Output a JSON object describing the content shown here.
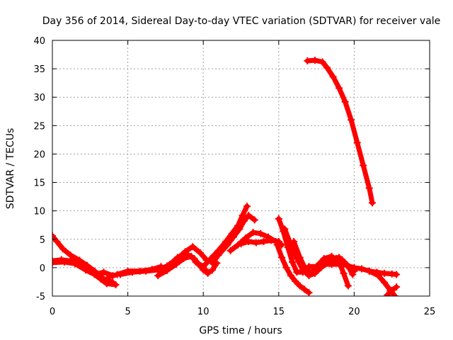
{
  "chart_data": {
    "type": "scatter",
    "title": "Day 356 of 2014, Sidereal Day-to-day VTEC variation (SDTVAR) for receiver vale",
    "xlabel": "GPS time / hours",
    "ylabel": "SDTVAR / TECUs",
    "xlim": [
      0,
      25
    ],
    "ylim": [
      -5,
      40
    ],
    "xticks": [
      "0",
      "5",
      "10",
      "15",
      "20",
      "25"
    ],
    "yticks": [
      "-5",
      "0",
      "5",
      "10",
      "15",
      "20",
      "25",
      "30",
      "35",
      "40"
    ],
    "grid": true,
    "marker": "plus",
    "color": "#ff0000",
    "series": [
      {
        "name": "s1",
        "x": [
          0,
          0.3,
          0.7,
          1.2,
          1.8,
          2.3,
          2.8,
          3.3,
          4.0
        ],
        "y": [
          5.6,
          4.6,
          3.3,
          2.2,
          1.3,
          0.4,
          -0.6,
          -1.8,
          -2.6
        ]
      },
      {
        "name": "s2",
        "x": [
          0,
          0.6,
          1.2,
          1.8,
          2.3,
          2.8,
          3.2,
          3.6,
          4.2
        ],
        "y": [
          1.2,
          1.4,
          1.2,
          0.8,
          0.0,
          -1.2,
          -2.0,
          -2.8,
          -3.0
        ]
      },
      {
        "name": "s3",
        "x": [
          0,
          0.8,
          1.5,
          2.2,
          2.8,
          3.4,
          4.0
        ],
        "y": [
          0.9,
          1.0,
          0.7,
          -0.4,
          -1.2,
          -0.8,
          -1.4
        ]
      },
      {
        "name": "s4",
        "x": [
          3.8,
          4.3,
          5.0,
          5.8,
          6.6,
          7.2
        ],
        "y": [
          -1.6,
          -1.2,
          -0.6,
          -0.6,
          -0.3,
          0.2
        ]
      },
      {
        "name": "s5",
        "x": [
          4.5,
          5.3,
          6.2,
          7.0,
          7.6,
          8.2,
          8.8,
          9.3,
          9.8,
          10.2
        ],
        "y": [
          -1.2,
          -0.8,
          -0.6,
          -0.4,
          0.3,
          1.4,
          2.8,
          3.7,
          2.6,
          1.4
        ]
      },
      {
        "name": "s6",
        "x": [
          7.3,
          7.8,
          8.3,
          8.9,
          9.4,
          9.7,
          10.0,
          10.3,
          10.6,
          10.9
        ],
        "y": [
          -0.6,
          0.6,
          1.8,
          2.4,
          1.6,
          0.6,
          -0.4,
          -1.0,
          -0.4,
          0.8
        ]
      },
      {
        "name": "s7",
        "x": [
          7.0,
          7.6,
          8.2,
          8.7,
          9.2,
          9.6,
          10.0,
          10.3
        ],
        "y": [
          -1.4,
          -0.5,
          0.6,
          1.6,
          2.0,
          0.8,
          0.0,
          -0.8
        ]
      },
      {
        "name": "s8",
        "x": [
          9.5,
          10.0,
          10.5,
          11.0,
          11.5,
          11.9,
          12.3,
          12.6,
          12.9
        ],
        "y": [
          1.0,
          0.2,
          1.6,
          3.0,
          4.6,
          6.0,
          7.4,
          9.2,
          10.8
        ]
      },
      {
        "name": "s9",
        "x": [
          10.6,
          11.0,
          11.6,
          12.0,
          12.4,
          12.7,
          13.0,
          13.4
        ],
        "y": [
          0.8,
          2.2,
          4.0,
          5.4,
          6.8,
          8.2,
          9.2,
          8.4
        ]
      },
      {
        "name": "s10",
        "x": [
          11.8,
          12.3,
          12.8,
          13.3,
          13.8,
          14.3,
          14.8,
          15.2
        ],
        "y": [
          3.0,
          4.0,
          5.2,
          6.2,
          6.0,
          5.4,
          4.6,
          4.0
        ]
      },
      {
        "name": "s11",
        "x": [
          12.5,
          13.0,
          13.5,
          14.0,
          14.5,
          15.0
        ],
        "y": [
          4.2,
          4.6,
          4.4,
          4.6,
          4.8,
          4.6
        ]
      },
      {
        "name": "s12",
        "x": [
          15.0,
          15.3,
          15.6,
          15.9,
          16.2,
          16.6,
          17.0,
          17.5,
          18.0,
          18.5,
          19.0,
          19.5,
          20.0,
          20.5,
          21.0,
          21.5,
          22.0,
          22.5,
          22.8
        ],
        "y": [
          8.6,
          6.4,
          3.6,
          1.0,
          -0.8,
          -0.8,
          0.2,
          0.2,
          0.6,
          0.6,
          0.6,
          0.4,
          0.0,
          -0.2,
          -0.6,
          -0.8,
          -1.0,
          -1.1,
          -1.2
        ]
      },
      {
        "name": "s13",
        "x": [
          15.4,
          15.8,
          16.2,
          16.6,
          17.0,
          17.4,
          17.8,
          18.3,
          18.8,
          19.2,
          19.6,
          19.9
        ],
        "y": [
          6.8,
          4.0,
          1.6,
          -0.4,
          -1.4,
          -1.0,
          0.0,
          1.0,
          1.6,
          1.4,
          0.2,
          -1.2
        ]
      },
      {
        "name": "s14",
        "x": [
          16.0,
          16.4,
          16.8,
          17.2,
          17.6,
          18.0,
          18.5,
          19.0,
          19.5,
          20.0
        ],
        "y": [
          4.6,
          1.8,
          -0.4,
          -0.8,
          0.2,
          0.8,
          1.6,
          1.8,
          0.6,
          -0.6
        ]
      },
      {
        "name": "s15",
        "x": [
          14.9,
          15.2,
          15.5,
          15.8,
          16.1,
          16.4,
          16.7,
          17.0
        ],
        "y": [
          4.0,
          1.8,
          0.0,
          -1.4,
          -2.4,
          -3.2,
          -3.8,
          -4.4
        ]
      },
      {
        "name": "s16",
        "x": [
          17.5,
          18.0,
          18.5,
          19.0,
          19.3,
          19.6
        ],
        "y": [
          0.2,
          1.6,
          2.0,
          1.0,
          -1.0,
          -3.2
        ]
      },
      {
        "name": "s17",
        "x": [
          21.0,
          21.6,
          22.0,
          22.4,
          22.7
        ],
        "y": [
          -0.6,
          -1.4,
          -2.6,
          -4.0,
          -5.0
        ]
      },
      {
        "name": "s18",
        "x": [
          22.2,
          22.5,
          22.8
        ],
        "y": [
          -4.8,
          -4.0,
          -3.4
        ]
      },
      {
        "name": "s19",
        "x": [
          16.9,
          17.4,
          17.9,
          18.2,
          18.6,
          19.0,
          19.4,
          19.8,
          20.2,
          20.6,
          21.0,
          21.2
        ],
        "y": [
          36.4,
          36.5,
          36.2,
          35.2,
          33.6,
          31.6,
          29.2,
          26.0,
          22.0,
          18.0,
          14.0,
          11.4
        ]
      }
    ]
  }
}
